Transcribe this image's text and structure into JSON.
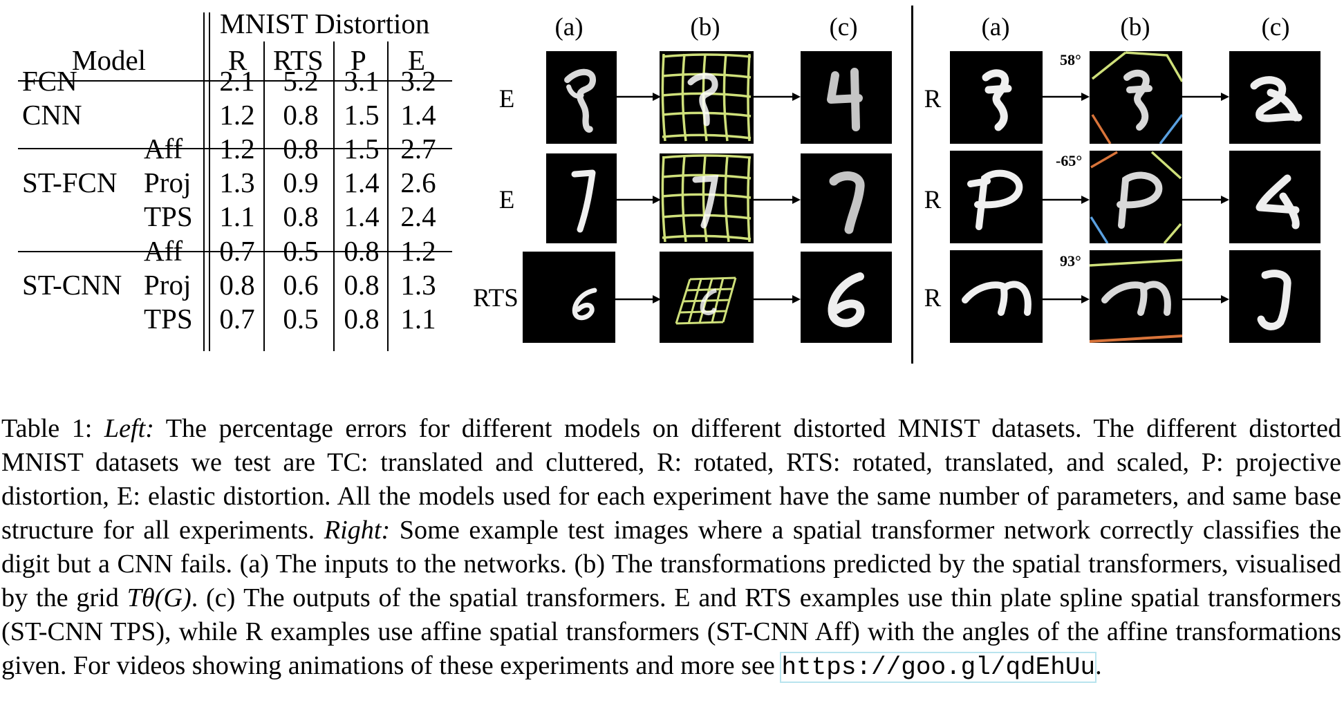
{
  "table": {
    "header_group": "MNIST Distortion",
    "model_header": "Model",
    "columns": [
      "R",
      "RTS",
      "P",
      "E"
    ],
    "rows": [
      {
        "model": "FCN",
        "variant": "",
        "values": [
          "2.1",
          "5.2",
          "3.1",
          "3.2"
        ]
      },
      {
        "model": "CNN",
        "variant": "",
        "values": [
          "1.2",
          "0.8",
          "1.5",
          "1.4"
        ]
      },
      {
        "model": "",
        "variant": "Aff",
        "values": [
          "1.2",
          "0.8",
          "1.5",
          "2.7"
        ]
      },
      {
        "model": "ST-FCN",
        "variant": "Proj",
        "values": [
          "1.3",
          "0.9",
          "1.4",
          "2.6"
        ]
      },
      {
        "model": "",
        "variant": "TPS",
        "values": [
          "1.1",
          "0.8",
          "1.4",
          "2.4"
        ]
      },
      {
        "model": "",
        "variant": "Aff",
        "values": [
          "0.7",
          "0.5",
          "0.8",
          "1.2"
        ]
      },
      {
        "model": "ST-CNN",
        "variant": "Proj",
        "values": [
          "0.8",
          "0.6",
          "0.8",
          "1.3"
        ]
      },
      {
        "model": "",
        "variant": "TPS",
        "values": [
          "0.7",
          "0.5",
          "0.8",
          "1.1"
        ]
      }
    ]
  },
  "figure_left": {
    "col_labels": [
      "(a)",
      "(b)",
      "(c)"
    ],
    "row_labels": [
      "E",
      "E",
      "RTS"
    ]
  },
  "figure_right": {
    "col_labels": [
      "(a)",
      "(b)",
      "(c)"
    ],
    "row_labels": [
      "R",
      "R",
      "R"
    ],
    "angles": [
      "58°",
      "-65°",
      "93°"
    ]
  },
  "caption": {
    "label": "Table 1:",
    "left_tag": "Left:",
    "part1": "The percentage errors for different models on different distorted MNIST datasets. The different distorted MNIST datasets we test are TC: translated and cluttered, R: rotated, RTS: rotated, translated, and scaled, P: projective distortion, E: elastic distortion. All the models used for each experiment have the same number of parameters, and same base structure for all experiments.",
    "right_tag": "Right:",
    "part2": "Some example test images where a spatial transformer network correctly classifies the digit but a CNN fails. (a) The inputs to the networks. (b) The transformations predicted by the spatial transformers, visualised by the grid",
    "math": "Tθ(G)",
    "part3": ". (c) The outputs of the spatial transformers. E and RTS examples use thin plate spline spatial transformers (ST-CNN TPS), while R examples use affine spatial transformers (ST-CNN Aff) with the angles of the affine transformations given. For videos showing animations of these experiments and more see",
    "url": "https://goo.gl/qdEhUu",
    "end": "."
  },
  "colors": {
    "grid": "#cfe07a",
    "border_orange": "#d9743a",
    "border_blue": "#5aa0e0",
    "link_box": "#b8e4ee"
  }
}
